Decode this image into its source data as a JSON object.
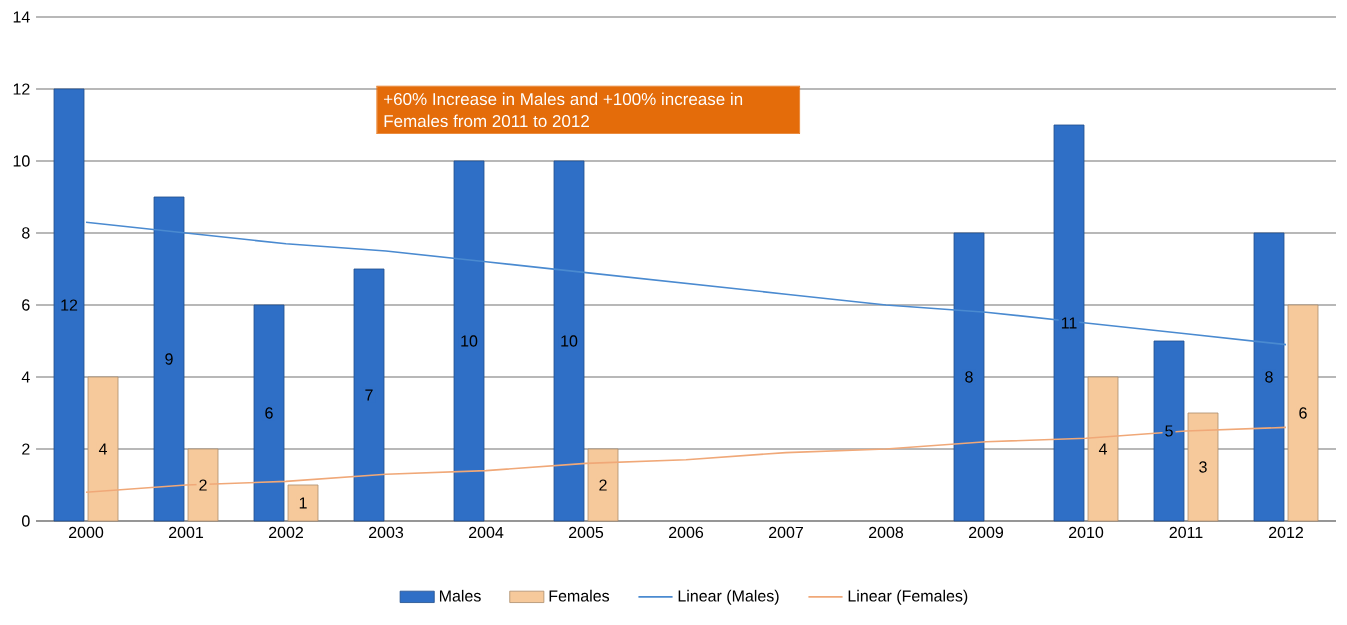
{
  "chart_data": {
    "type": "bar",
    "categories": [
      "2000",
      "2001",
      "2002",
      "2003",
      "2004",
      "2005",
      "2006",
      "2007",
      "2008",
      "2009",
      "2010",
      "2011",
      "2012"
    ],
    "series": [
      {
        "name": "Males",
        "color": "#2f6fc6",
        "values": [
          12,
          9,
          6,
          7,
          10,
          10,
          null,
          null,
          null,
          8,
          11,
          5,
          8
        ],
        "value_labels": [
          "12",
          "9",
          "6",
          "7",
          "10",
          "10",
          null,
          null,
          null,
          "8",
          "11",
          "5",
          "8"
        ]
      },
      {
        "name": "Females",
        "color": "#f6c99b",
        "values": [
          4,
          2,
          1,
          null,
          null,
          2,
          null,
          null,
          null,
          null,
          4,
          3,
          6
        ],
        "value_labels": [
          "4",
          "2",
          "1",
          null,
          null,
          "2",
          null,
          null,
          null,
          null,
          "4",
          "3",
          "6"
        ]
      },
      {
        "name": "Linear (Males)",
        "type": "line",
        "color": "#4a8ad0",
        "values": [
          8.3,
          8.0,
          7.7,
          7.5,
          7.2,
          6.9,
          6.6,
          6.3,
          6.0,
          5.8,
          5.5,
          5.2,
          4.9
        ]
      },
      {
        "name": "Linear (Females)",
        "type": "line",
        "color": "#f0a878",
        "values": [
          0.8,
          1.0,
          1.1,
          1.3,
          1.4,
          1.6,
          1.7,
          1.9,
          2.0,
          2.2,
          2.3,
          2.5,
          2.6
        ]
      }
    ],
    "ylim": [
      0,
      14
    ],
    "yticks": [
      0,
      2,
      4,
      6,
      8,
      10,
      12,
      14
    ],
    "grid": "y",
    "legend": "bottom",
    "annotations": [
      "+60% Increase in Males and +100% increase in Females from 2011 to 2012"
    ]
  }
}
